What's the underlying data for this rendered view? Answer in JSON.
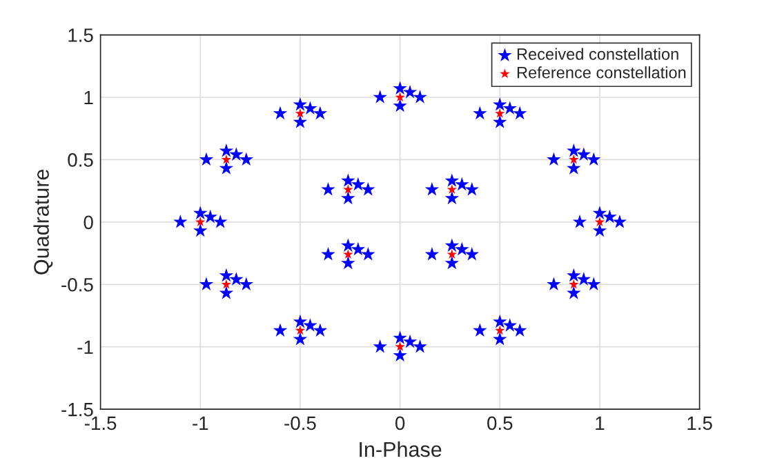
{
  "chart_data": {
    "type": "scatter",
    "xlabel": "In-Phase",
    "ylabel": "Quadrature",
    "xlim": [
      -1.5,
      1.5
    ],
    "ylim": [
      -1.5,
      1.5
    ],
    "xticks": [
      -1.5,
      -1,
      -0.5,
      0,
      0.5,
      1,
      1.5
    ],
    "yticks": [
      -1.5,
      -1,
      -0.5,
      0,
      0.5,
      1,
      1.5
    ],
    "grid": true,
    "legend": "top right",
    "marker": "star",
    "series": [
      {
        "name": "Received constellation",
        "color": "#0000ff",
        "x": [
          0.9,
          1.1,
          1,
          1,
          1.05,
          0.77,
          0.97,
          0.87,
          0.87,
          0.92,
          0.4,
          0.6,
          0.5,
          0.5,
          0.55,
          -0.1,
          0.1,
          0,
          0,
          0.05,
          -0.6,
          -0.4,
          -0.5,
          -0.5,
          -0.45,
          -0.97,
          -0.77,
          -0.87,
          -0.87,
          -0.82,
          -1.1,
          -0.9,
          -1,
          -1,
          -0.95,
          -0.97,
          -0.77,
          -0.87,
          -0.87,
          -0.82,
          -0.6,
          -0.4,
          -0.5,
          -0.5,
          -0.45,
          -0.1,
          0.1,
          0,
          0,
          0.05,
          0.4,
          0.6,
          0.5,
          0.5,
          0.55,
          0.77,
          0.97,
          0.87,
          0.87,
          0.92,
          0.16,
          0.36,
          0.26,
          0.26,
          0.31,
          -0.36,
          -0.16,
          -0.26,
          -0.26,
          -0.21,
          -0.36,
          -0.16,
          -0.26,
          -0.26,
          -0.21,
          0.16,
          0.36,
          0.26,
          0.26,
          0.31
        ],
        "values": [
          0,
          0,
          0.07,
          -0.07,
          0.04,
          0.5,
          0.5,
          0.57,
          0.43,
          0.54,
          0.87,
          0.87,
          0.94,
          0.8,
          0.91,
          1,
          1,
          1.07,
          0.93,
          1.04,
          0.87,
          0.87,
          0.94,
          0.8,
          0.91,
          0.5,
          0.5,
          0.57,
          0.43,
          0.54,
          0,
          0,
          0.07,
          -0.07,
          0.04,
          -0.5,
          -0.5,
          -0.43,
          -0.57,
          -0.46,
          -0.87,
          -0.87,
          -0.8,
          -0.94,
          -0.83,
          -1,
          -1,
          -0.93,
          -1.07,
          -0.96,
          -0.87,
          -0.87,
          -0.8,
          -0.94,
          -0.83,
          -0.5,
          -0.5,
          -0.43,
          -0.57,
          -0.46,
          0.26,
          0.26,
          0.33,
          0.19,
          0.3,
          0.26,
          0.26,
          0.33,
          0.19,
          0.3,
          -0.26,
          -0.26,
          -0.19,
          -0.33,
          -0.22,
          -0.26,
          -0.26,
          -0.19,
          -0.33,
          -0.22
        ]
      },
      {
        "name": "Reference constellation",
        "color": "#ff0000",
        "x": [
          1,
          0.87,
          0.5,
          0,
          -0.5,
          -0.87,
          -1,
          -0.87,
          -0.5,
          0,
          0.5,
          0.87,
          0.26,
          -0.26,
          -0.26,
          0.26
        ],
        "values": [
          0,
          0.5,
          0.87,
          1,
          0.87,
          0.5,
          0,
          -0.5,
          -0.87,
          -1,
          -0.87,
          -0.5,
          0.26,
          0.26,
          -0.26,
          -0.26
        ]
      }
    ]
  }
}
